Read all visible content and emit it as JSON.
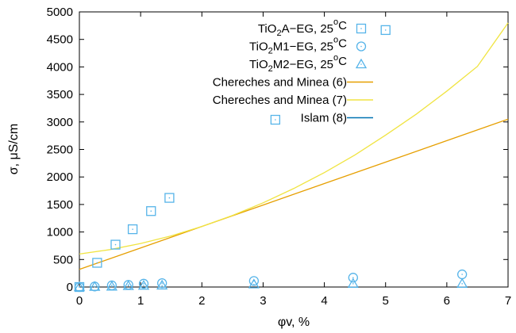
{
  "chart_data": {
    "type": "scatter",
    "xlabel": "φv, %",
    "ylabel": "σ, μS/cm",
    "xlim": [
      0,
      7
    ],
    "ylim": [
      0,
      5000
    ],
    "xticks": [
      0,
      1,
      2,
      3,
      4,
      5,
      6,
      7
    ],
    "yticks": [
      0,
      500,
      1000,
      1500,
      2000,
      2500,
      3000,
      3500,
      4000,
      4500,
      5000
    ],
    "grid": false,
    "legend_position": "top-center",
    "series": [
      {
        "name": "TiO2A-EG, 25oC",
        "legend": {
          "pre": "TiO",
          "sub": "2",
          "mid": "A−EG, 25",
          "sup": "o",
          "post": "C"
        },
        "kind": "points",
        "marker": "square",
        "color": "#56b4e9",
        "x": [
          0,
          0.29,
          0.59,
          0.87,
          1.17,
          1.47,
          3.2,
          5.0
        ],
        "y": [
          0,
          440,
          770,
          1050,
          1380,
          1620,
          3040,
          4670
        ]
      },
      {
        "name": "TiO2M1-EG, 25oC",
        "legend": {
          "pre": "TiO",
          "sub": "2",
          "mid": "M1−EG, 25",
          "sup": "o",
          "post": "C"
        },
        "kind": "points",
        "marker": "circle",
        "color": "#56b4e9",
        "x": [
          0,
          0.25,
          0.53,
          0.8,
          1.05,
          1.35,
          2.85,
          4.47,
          6.25
        ],
        "y": [
          0,
          10,
          30,
          40,
          60,
          70,
          110,
          170,
          230
        ]
      },
      {
        "name": "TiO2M2-EG, 25oC",
        "legend": {
          "pre": "TiO",
          "sub": "2",
          "mid": "M2−EG, 25",
          "sup": "o",
          "post": "C"
        },
        "kind": "points",
        "marker": "triangle",
        "color": "#56b4e9",
        "x": [
          0,
          0.25,
          0.53,
          0.8,
          1.05,
          1.35,
          2.85,
          4.47,
          6.25
        ],
        "y": [
          0,
          5,
          10,
          20,
          25,
          30,
          50,
          60,
          60
        ]
      },
      {
        "name": "Chereches and Minea (6)",
        "legend": {
          "pre": "Chereches and Minea (6)",
          "sub": "",
          "mid": "",
          "sup": "",
          "post": ""
        },
        "kind": "line",
        "color": "#e69f00",
        "x": [
          0,
          1,
          2,
          3,
          4,
          5,
          6,
          7
        ],
        "y": [
          320,
          710,
          1100,
          1490,
          1880,
          2270,
          2660,
          3050
        ]
      },
      {
        "name": "Chereches and Minea (7)",
        "legend": {
          "pre": "Chereches and Minea (7)",
          "sub": "",
          "mid": "",
          "sup": "",
          "post": ""
        },
        "kind": "line",
        "color": "#f0e442",
        "x": [
          0,
          0.5,
          1,
          1.5,
          2,
          2.5,
          3,
          3.5,
          4,
          4.5,
          5,
          5.5,
          6,
          6.5,
          7
        ],
        "y": [
          600,
          680,
          790,
          930,
          1100,
          1300,
          1530,
          1790,
          2080,
          2400,
          2760,
          3140,
          3560,
          4010,
          4800
        ]
      },
      {
        "name": "Islam (8)",
        "legend": {
          "pre": "Islam (8)",
          "sub": "",
          "mid": "",
          "sup": "",
          "post": ""
        },
        "kind": "line",
        "color": "#0072b2",
        "x": [],
        "y": []
      }
    ]
  }
}
